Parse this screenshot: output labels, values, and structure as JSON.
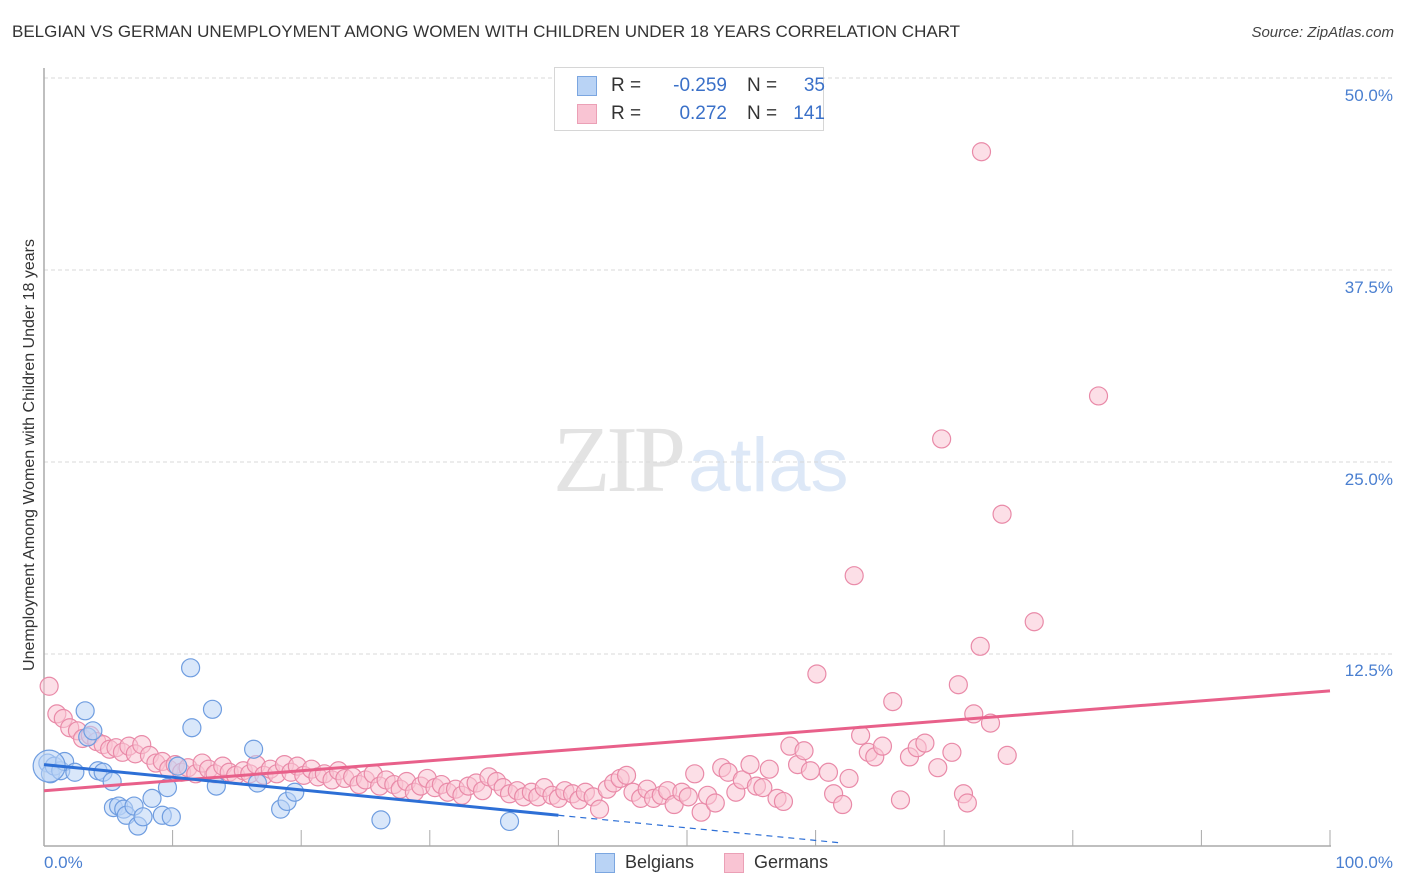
{
  "header": {
    "title": "BELGIAN VS GERMAN UNEMPLOYMENT AMONG WOMEN WITH CHILDREN UNDER 18 YEARS CORRELATION CHART",
    "source": "Source: ZipAtlas.com"
  },
  "watermark": {
    "zip": "ZIP",
    "atlas": "atlas"
  },
  "legend_box": {
    "rows": [
      {
        "series": "Belgians",
        "r_label": "R =",
        "r_value": "-0.259",
        "n_label": "N =",
        "n_value": "35"
      },
      {
        "series": "Germans",
        "r_label": "R =",
        "r_value": "0.272",
        "n_label": "N =",
        "n_value": "141"
      }
    ]
  },
  "axes": {
    "y_label": "Unemployment Among Women with Children Under 18 years",
    "y_ticks": [
      "50.0%",
      "37.5%",
      "25.0%",
      "12.5%"
    ],
    "x_ticks": [
      "0.0%",
      "100.0%"
    ]
  },
  "bottom_legend": {
    "items": [
      "Belgians",
      "Germans"
    ]
  },
  "colors": {
    "blue_fill": "#b9d3f5",
    "blue_stroke": "#6f9de0",
    "blue_line": "#2d6fd6",
    "pink_fill": "#f9c4d3",
    "pink_stroke": "#e98aa8",
    "pink_line": "#e8608a",
    "tick_label": "#4a7fd0"
  },
  "chart_data": {
    "type": "scatter",
    "title": "BELGIAN VS GERMAN UNEMPLOYMENT AMONG WOMEN WITH CHILDREN UNDER 18 YEARS CORRELATION CHART",
    "xlabel": "",
    "ylabel": "Unemployment Among Women with Children Under 18 years",
    "xlim": [
      0,
      100
    ],
    "ylim": [
      0,
      50
    ],
    "x_ticks": [
      "0.0%",
      "100.0%"
    ],
    "y_ticks": [
      "12.5%",
      "25.0%",
      "37.5%",
      "50.0%"
    ],
    "grid": "horizontal dashed",
    "legend_position": "top-center and bottom-center",
    "series": [
      {
        "name": "Belgians",
        "r": -0.259,
        "n": 35,
        "trend": {
          "x0": 0,
          "y0": 5.3,
          "x1": 40,
          "y1": 2.0,
          "dashed_extension_to": [
            62,
            0.2
          ]
        },
        "points": [
          [
            0.3,
            5.4
          ],
          [
            0.5,
            4.7
          ],
          [
            0.8,
            5.2
          ],
          [
            1.3,
            4.9
          ],
          [
            1.6,
            5.5
          ],
          [
            2.4,
            4.8
          ],
          [
            3.2,
            8.8
          ],
          [
            3.4,
            7.1
          ],
          [
            3.8,
            7.5
          ],
          [
            4.2,
            4.9
          ],
          [
            4.6,
            4.8
          ],
          [
            5.3,
            4.2
          ],
          [
            5.4,
            2.5
          ],
          [
            5.8,
            2.6
          ],
          [
            6.2,
            2.4
          ],
          [
            6.4,
            2.0
          ],
          [
            7.0,
            2.6
          ],
          [
            7.3,
            1.3
          ],
          [
            7.7,
            1.9
          ],
          [
            8.4,
            3.1
          ],
          [
            9.2,
            2.0
          ],
          [
            9.6,
            3.8
          ],
          [
            9.9,
            1.9
          ],
          [
            10.4,
            5.2
          ],
          [
            11.4,
            11.6
          ],
          [
            11.5,
            7.7
          ],
          [
            13.1,
            8.9
          ],
          [
            13.4,
            3.9
          ],
          [
            16.3,
            6.3
          ],
          [
            16.6,
            4.1
          ],
          [
            18.4,
            2.4
          ],
          [
            18.9,
            2.9
          ],
          [
            19.5,
            3.5
          ],
          [
            26.2,
            1.7
          ],
          [
            36.2,
            1.6
          ]
        ]
      },
      {
        "name": "Germans",
        "r": 0.272,
        "n": 141,
        "trend": {
          "x0": 0,
          "y0": 3.6,
          "x1": 100,
          "y1": 10.1
        },
        "points": [
          [
            0.4,
            10.4
          ],
          [
            1.0,
            8.6
          ],
          [
            1.5,
            8.3
          ],
          [
            2.0,
            7.7
          ],
          [
            2.6,
            7.5
          ],
          [
            3.0,
            7.0
          ],
          [
            3.6,
            7.2
          ],
          [
            4.1,
            6.8
          ],
          [
            4.6,
            6.6
          ],
          [
            5.1,
            6.3
          ],
          [
            5.6,
            6.4
          ],
          [
            6.1,
            6.1
          ],
          [
            6.6,
            6.5
          ],
          [
            7.1,
            6.0
          ],
          [
            7.6,
            6.6
          ],
          [
            8.2,
            5.9
          ],
          [
            8.7,
            5.4
          ],
          [
            9.2,
            5.5
          ],
          [
            9.7,
            5.0
          ],
          [
            10.2,
            5.3
          ],
          [
            10.7,
            4.8
          ],
          [
            11.2,
            5.1
          ],
          [
            11.8,
            4.7
          ],
          [
            12.3,
            5.4
          ],
          [
            12.8,
            5.0
          ],
          [
            13.3,
            4.7
          ],
          [
            13.9,
            5.2
          ],
          [
            14.4,
            4.8
          ],
          [
            14.9,
            4.6
          ],
          [
            15.5,
            4.9
          ],
          [
            16.0,
            4.7
          ],
          [
            16.5,
            5.3
          ],
          [
            17.1,
            4.6
          ],
          [
            17.6,
            5.0
          ],
          [
            18.1,
            4.7
          ],
          [
            18.7,
            5.3
          ],
          [
            19.2,
            4.8
          ],
          [
            19.7,
            5.2
          ],
          [
            20.2,
            4.6
          ],
          [
            20.8,
            5.0
          ],
          [
            21.3,
            4.5
          ],
          [
            21.8,
            4.7
          ],
          [
            22.4,
            4.3
          ],
          [
            22.9,
            4.9
          ],
          [
            23.4,
            4.4
          ],
          [
            24.0,
            4.5
          ],
          [
            24.5,
            4.0
          ],
          [
            25.0,
            4.3
          ],
          [
            25.6,
            4.7
          ],
          [
            26.1,
            3.9
          ],
          [
            26.6,
            4.3
          ],
          [
            27.2,
            4.0
          ],
          [
            27.7,
            3.7
          ],
          [
            28.2,
            4.2
          ],
          [
            28.8,
            3.5
          ],
          [
            29.3,
            3.9
          ],
          [
            29.8,
            4.4
          ],
          [
            30.4,
            3.8
          ],
          [
            30.9,
            4.0
          ],
          [
            31.4,
            3.5
          ],
          [
            32.0,
            3.7
          ],
          [
            32.5,
            3.3
          ],
          [
            33.0,
            3.9
          ],
          [
            33.6,
            4.1
          ],
          [
            34.1,
            3.6
          ],
          [
            34.6,
            4.5
          ],
          [
            35.2,
            4.2
          ],
          [
            35.7,
            3.8
          ],
          [
            36.2,
            3.4
          ],
          [
            36.8,
            3.6
          ],
          [
            37.3,
            3.2
          ],
          [
            37.9,
            3.5
          ],
          [
            38.4,
            3.2
          ],
          [
            38.9,
            3.8
          ],
          [
            39.5,
            3.3
          ],
          [
            40.0,
            3.1
          ],
          [
            40.5,
            3.6
          ],
          [
            41.1,
            3.4
          ],
          [
            41.6,
            3.0
          ],
          [
            42.1,
            3.5
          ],
          [
            42.7,
            3.2
          ],
          [
            43.2,
            2.4
          ],
          [
            43.8,
            3.7
          ],
          [
            44.3,
            4.1
          ],
          [
            44.8,
            4.4
          ],
          [
            45.3,
            4.6
          ],
          [
            45.8,
            3.5
          ],
          [
            46.4,
            3.1
          ],
          [
            46.9,
            3.7
          ],
          [
            47.4,
            3.1
          ],
          [
            48.0,
            3.3
          ],
          [
            48.5,
            3.6
          ],
          [
            49.0,
            2.7
          ],
          [
            49.6,
            3.5
          ],
          [
            50.1,
            3.2
          ],
          [
            50.6,
            4.7
          ],
          [
            51.1,
            2.2
          ],
          [
            51.6,
            3.3
          ],
          [
            52.2,
            2.8
          ],
          [
            52.7,
            5.1
          ],
          [
            53.2,
            4.8
          ],
          [
            53.8,
            3.5
          ],
          [
            54.3,
            4.3
          ],
          [
            54.9,
            5.3
          ],
          [
            55.4,
            3.9
          ],
          [
            55.9,
            3.8
          ],
          [
            56.4,
            5.0
          ],
          [
            57.0,
            3.1
          ],
          [
            57.5,
            2.9
          ],
          [
            58.0,
            6.5
          ],
          [
            58.6,
            5.3
          ],
          [
            59.1,
            6.2
          ],
          [
            59.6,
            4.9
          ],
          [
            60.1,
            11.2
          ],
          [
            61.0,
            4.8
          ],
          [
            61.4,
            3.4
          ],
          [
            62.1,
            2.7
          ],
          [
            62.6,
            4.4
          ],
          [
            63.0,
            17.6
          ],
          [
            63.5,
            7.2
          ],
          [
            64.1,
            6.1
          ],
          [
            64.6,
            5.8
          ],
          [
            65.2,
            6.5
          ],
          [
            66.0,
            9.4
          ],
          [
            66.6,
            3.0
          ],
          [
            67.3,
            5.8
          ],
          [
            67.9,
            6.4
          ],
          [
            68.5,
            6.7
          ],
          [
            69.5,
            5.1
          ],
          [
            69.8,
            26.5
          ],
          [
            70.6,
            6.1
          ],
          [
            71.1,
            10.5
          ],
          [
            71.5,
            3.4
          ],
          [
            71.8,
            2.8
          ],
          [
            72.3,
            8.6
          ],
          [
            72.8,
            13.0
          ],
          [
            72.9,
            45.2
          ],
          [
            73.6,
            8.0
          ],
          [
            74.5,
            21.6
          ],
          [
            74.9,
            5.9
          ],
          [
            77.0,
            14.6
          ],
          [
            82.0,
            29.3
          ]
        ]
      }
    ]
  }
}
